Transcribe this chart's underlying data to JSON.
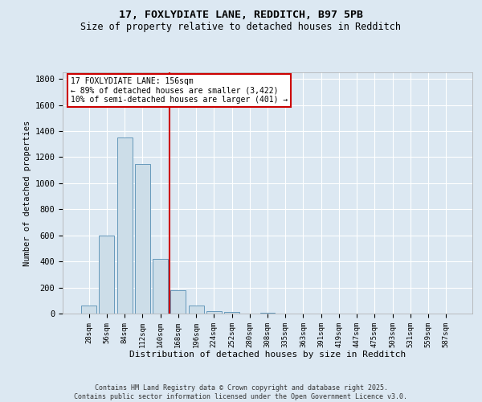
{
  "title_line1": "17, FOXLYDIATE LANE, REDDITCH, B97 5PB",
  "title_line2": "Size of property relative to detached houses in Redditch",
  "xlabel": "Distribution of detached houses by size in Redditch",
  "ylabel": "Number of detached properties",
  "bar_labels": [
    "28sqm",
    "56sqm",
    "84sqm",
    "112sqm",
    "140sqm",
    "168sqm",
    "196sqm",
    "224sqm",
    "252sqm",
    "280sqm",
    "308sqm",
    "335sqm",
    "363sqm",
    "391sqm",
    "419sqm",
    "447sqm",
    "475sqm",
    "503sqm",
    "531sqm",
    "559sqm",
    "587sqm"
  ],
  "bar_values": [
    60,
    600,
    1350,
    1150,
    420,
    180,
    60,
    20,
    10,
    0,
    5,
    0,
    0,
    0,
    0,
    0,
    0,
    0,
    0,
    0,
    0
  ],
  "bar_color": "#ccdde8",
  "bar_edge_color": "#6699bb",
  "vline_bin": 4,
  "vline_color": "#cc0000",
  "annotation_text": "17 FOXLYDIATE LANE: 156sqm\n← 89% of detached houses are smaller (3,422)\n10% of semi-detached houses are larger (401) →",
  "annotation_box_color": "#ffffff",
  "annotation_box_edge": "#cc0000",
  "ylim": [
    0,
    1850
  ],
  "yticks": [
    0,
    200,
    400,
    600,
    800,
    1000,
    1200,
    1400,
    1600,
    1800
  ],
  "bg_color": "#dce8f2",
  "plot_bg_color": "#dce8f2",
  "footer_line1": "Contains HM Land Registry data © Crown copyright and database right 2025.",
  "footer_line2": "Contains public sector information licensed under the Open Government Licence v3.0."
}
